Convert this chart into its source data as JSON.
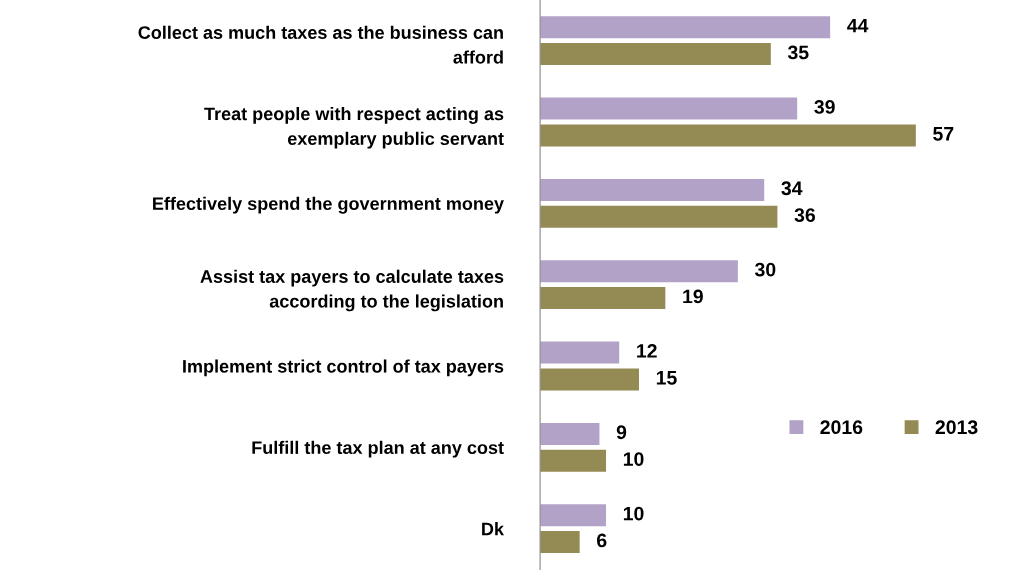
{
  "chart_data": {
    "type": "bar",
    "orientation": "horizontal",
    "categories": [
      "Collect as much taxes as the business can\nafford",
      "Treat people with respect acting as\nexemplary public servant",
      "Effectively spend the government money",
      "Assist tax payers to calculate taxes\naccording to the legislation",
      "Implement strict control of tax payers",
      "Fulfill the tax plan at any cost",
      "Dk"
    ],
    "series": [
      {
        "name": "2016",
        "color": "#b3a2c7",
        "values": [
          44,
          39,
          34,
          30,
          12,
          9,
          10
        ]
      },
      {
        "name": "2013",
        "color": "#948a54",
        "values": [
          35,
          57,
          36,
          19,
          15,
          10,
          6
        ]
      }
    ],
    "data_labels": true,
    "grid": false,
    "legend": "lower right"
  }
}
